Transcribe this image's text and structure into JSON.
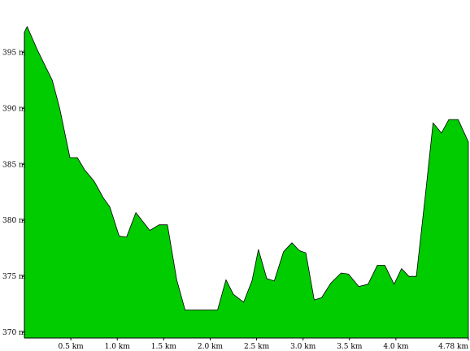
{
  "chart_data": {
    "type": "area",
    "title": "",
    "xlabel": "",
    "ylabel": "",
    "xlim": [
      0,
      4.78
    ],
    "ylim": [
      369.5,
      398
    ],
    "fill_color": "#00cc00",
    "stroke_color": "#000000",
    "grid": false,
    "x_ticks": [
      {
        "value": 0.5,
        "label": "0.5 km"
      },
      {
        "value": 1.0,
        "label": "1.0 km"
      },
      {
        "value": 1.5,
        "label": "1.5 km"
      },
      {
        "value": 2.0,
        "label": "2.0 km"
      },
      {
        "value": 2.5,
        "label": "2.5 km"
      },
      {
        "value": 3.0,
        "label": "3.0 km"
      },
      {
        "value": 3.5,
        "label": "3.5 km"
      },
      {
        "value": 4.0,
        "label": "4.0 km"
      },
      {
        "value": 4.78,
        "label": "4.78 km"
      }
    ],
    "y_ticks": [
      {
        "value": 370,
        "label": "370 m"
      },
      {
        "value": 375,
        "label": "375 m"
      },
      {
        "value": 380,
        "label": "380 m"
      },
      {
        "value": 385,
        "label": "385 m"
      },
      {
        "value": 390,
        "label": "390 m"
      },
      {
        "value": 395,
        "label": "395 m"
      }
    ],
    "x": [
      0,
      0.03,
      0.14,
      0.3,
      0.38,
      0.49,
      0.57,
      0.65,
      0.75,
      0.85,
      0.92,
      1.02,
      1.1,
      1.2,
      1.35,
      1.45,
      1.54,
      1.64,
      1.73,
      2.08,
      2.17,
      2.25,
      2.36,
      2.45,
      2.52,
      2.61,
      2.69,
      2.79,
      2.88,
      2.96,
      3.03,
      3.12,
      3.2,
      3.3,
      3.41,
      3.49,
      3.6,
      3.7,
      3.8,
      3.88,
      3.98,
      4.06,
      4.14,
      4.22,
      4.32,
      4.4,
      4.49,
      4.57,
      4.67,
      4.78
    ],
    "y": [
      396.8,
      397.3,
      395.2,
      392.5,
      390.0,
      385.6,
      385.6,
      384.5,
      383.5,
      382.0,
      381.2,
      378.6,
      378.5,
      380.7,
      379.1,
      379.6,
      379.6,
      374.7,
      372.0,
      372.0,
      374.7,
      373.4,
      372.7,
      374.6,
      377.4,
      374.8,
      374.6,
      377.2,
      378.0,
      377.3,
      377.1,
      372.9,
      373.1,
      374.4,
      375.3,
      375.2,
      374.1,
      374.3,
      376.0,
      376.0,
      374.3,
      375.7,
      375.0,
      375.0,
      382.5,
      388.7,
      387.8,
      389.0,
      389.0,
      387.0
    ]
  }
}
